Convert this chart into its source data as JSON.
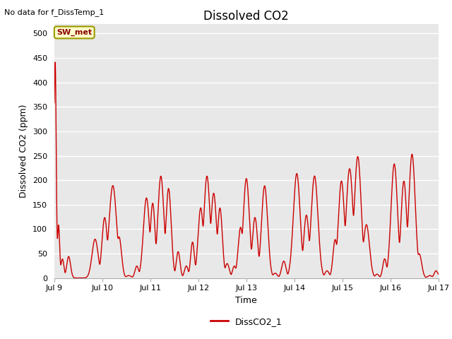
{
  "title": "Dissolved CO2",
  "top_left_text": "No data for f_DissTemp_1",
  "ylabel": "Dissolved CO2 (ppm)",
  "xlabel": "Time",
  "legend_label": "DissCO2_1",
  "line_color": "#cc0000",
  "legend_line_color": "#cc0000",
  "fig_bg_color": "#ffffff",
  "plot_bg_color": "#e8e8e8",
  "grid_color": "white",
  "xlim_start": 9.0,
  "xlim_end": 17.0,
  "ylim_bottom": 0,
  "ylim_top": 520,
  "yticks": [
    0,
    50,
    100,
    150,
    200,
    250,
    300,
    350,
    400,
    450,
    500
  ],
  "xtick_labels": [
    "Jul 9",
    "Jul 10",
    "Jul 11",
    "Jul 12",
    "Jul 13",
    "Jul 14",
    "Jul 15",
    "Jul 16",
    "Jul 17"
  ],
  "xtick_positions": [
    9,
    10,
    11,
    12,
    13,
    14,
    15,
    16,
    17
  ],
  "annotation_text": "SW_met",
  "title_fontsize": 12,
  "label_fontsize": 9,
  "tick_fontsize": 8,
  "top_left_fontsize": 8,
  "legend_fontsize": 9
}
